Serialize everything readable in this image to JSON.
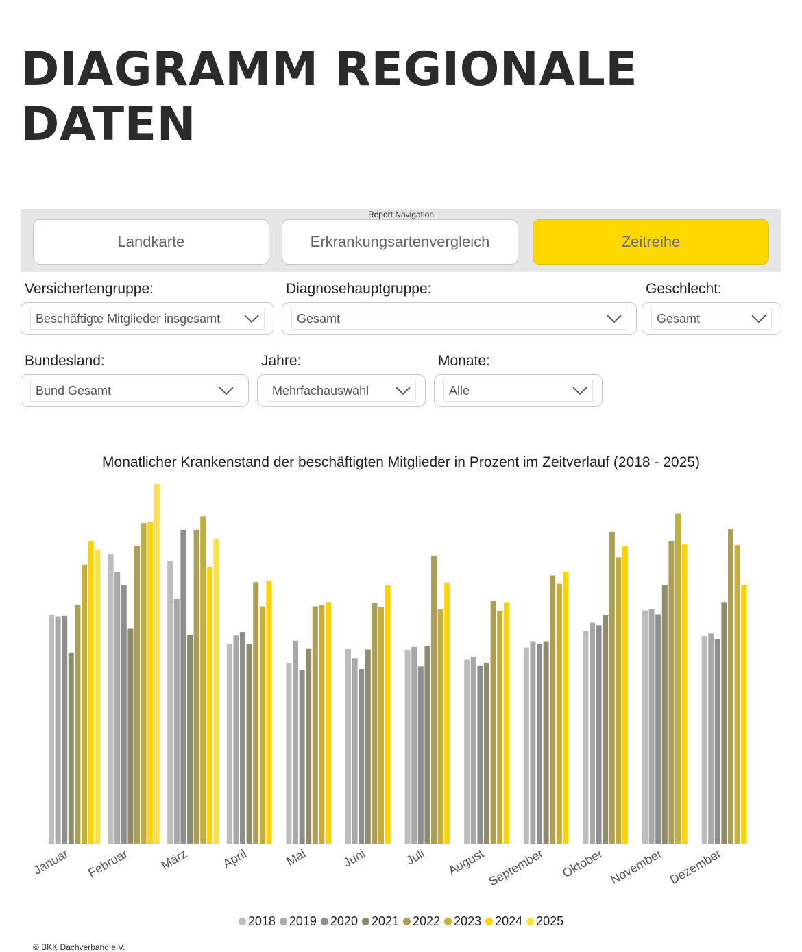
{
  "page": {
    "title": "DIAGRAMM REGIONALE DATEN",
    "copyright": "© BKK Dachverband e.V."
  },
  "nav": {
    "caption": "Report Navigation",
    "buttons": [
      {
        "label": "Landkarte",
        "active": false
      },
      {
        "label": "Erkrankungsartenvergleich",
        "active": false
      },
      {
        "label": "Zeitreihe",
        "active": true
      }
    ]
  },
  "filters": {
    "versichertengruppe": {
      "label": "Versichertengruppe:",
      "value": "Beschäftigte Mitglieder insgesamt"
    },
    "diagnosehauptgruppe": {
      "label": "Diagnosehauptgruppe:",
      "value": "Gesamt"
    },
    "geschlecht": {
      "label": "Geschlecht:",
      "value": "Gesamt"
    },
    "bundesland": {
      "label": "Bundesland:",
      "value": "Bund Gesamt"
    },
    "jahre": {
      "label": "Jahre:",
      "value": "Mehrfachauswahl"
    },
    "monate": {
      "label": "Monate:",
      "value": "Alle"
    }
  },
  "chart_data": {
    "type": "bar",
    "title": "Monatlicher Krankenstand der beschäftigten Mitglieder in Prozent im Zeitverlauf (2018 - 2025)",
    "xlabel": "",
    "ylabel": "",
    "ylim": [
      0,
      7.0
    ],
    "grid": false,
    "legend_position": "bottom",
    "categories": [
      "Januar",
      "Februar",
      "März",
      "April",
      "Mai",
      "Juni",
      "Juli",
      "August",
      "September",
      "Oktober",
      "November",
      "Dezember"
    ],
    "series": [
      {
        "name": "2018",
        "color": "#bdbdbd",
        "values": [
          4.44,
          5.63,
          5.5,
          3.89,
          3.52,
          3.79,
          3.77,
          3.58,
          3.82,
          4.14,
          4.54,
          4.04
        ]
      },
      {
        "name": "2019",
        "color": "#a8a8a8",
        "values": [
          4.42,
          5.29,
          4.76,
          4.05,
          3.95,
          3.61,
          3.83,
          3.64,
          3.94,
          4.3,
          4.57,
          4.09
        ]
      },
      {
        "name": "2020",
        "color": "#8e8e8e",
        "values": [
          4.43,
          5.03,
          6.11,
          4.12,
          3.38,
          3.4,
          3.45,
          3.47,
          3.88,
          4.25,
          4.46,
          3.98
        ]
      },
      {
        "name": "2021",
        "color": "#8f8c6c",
        "values": [
          3.71,
          4.18,
          4.06,
          3.89,
          3.79,
          3.78,
          3.84,
          3.52,
          3.94,
          4.44,
          5.03,
          4.69
        ]
      },
      {
        "name": "2022",
        "color": "#ae9d55",
        "values": [
          4.65,
          5.8,
          6.11,
          5.09,
          4.62,
          4.68,
          5.6,
          4.72,
          5.22,
          6.07,
          5.88,
          6.12
        ]
      },
      {
        "name": "2023",
        "color": "#c6ad38",
        "values": [
          5.43,
          6.24,
          6.37,
          4.62,
          4.64,
          4.6,
          4.57,
          4.53,
          5.06,
          5.57,
          6.42,
          5.81
        ]
      },
      {
        "name": "2024",
        "color": "#ffd200",
        "values": [
          5.89,
          6.27,
          5.38,
          5.12,
          4.69,
          5.03,
          5.08,
          4.69,
          5.29,
          5.79,
          5.83,
          5.04
        ]
      },
      {
        "name": "2025",
        "color": "#ffe046",
        "values": [
          5.72,
          7.0,
          5.92,
          null,
          null,
          null,
          null,
          null,
          null,
          null,
          null,
          null
        ]
      }
    ]
  }
}
